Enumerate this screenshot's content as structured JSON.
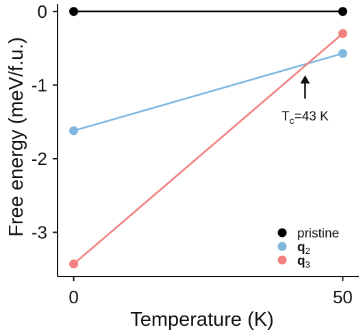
{
  "chart_data": {
    "type": "line",
    "x": [
      0,
      50
    ],
    "series": [
      {
        "name": "pristine",
        "sub": "",
        "bold": false,
        "color": "#000000",
        "values": [
          0,
          0
        ]
      },
      {
        "name": "q",
        "sub": "2",
        "bold": true,
        "color": "#7fb7df",
        "values": [
          -1.62,
          -0.57
        ]
      },
      {
        "name": "q",
        "sub": "3",
        "bold": true,
        "color": "#f28080",
        "values": [
          -3.43,
          -0.3
        ]
      }
    ],
    "xlabel": "Temperature (K)",
    "ylabel": "Free energy (meV/f.u.)",
    "xticks": [
      0,
      50
    ],
    "yticks": [
      0,
      -1,
      -2,
      -3
    ],
    "xlim": [
      -3,
      53
    ],
    "ylim": [
      -3.6,
      0.1
    ],
    "legend_position": "bottom-right",
    "annotation": {
      "text_main": "T",
      "text_sub": "c",
      "text_rest": "=43 K",
      "x": 43,
      "y": -0.7,
      "arrow": "up"
    }
  }
}
